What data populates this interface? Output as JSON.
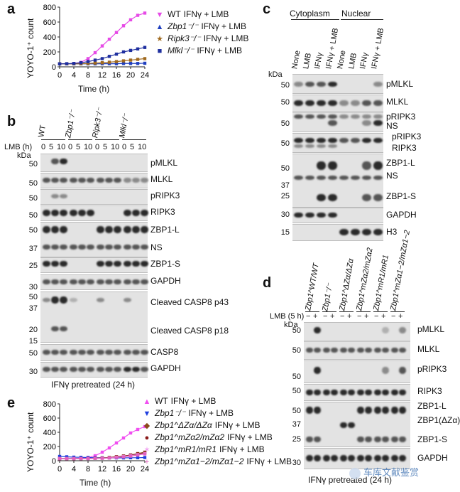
{
  "panels": {
    "a": {
      "label": "a",
      "y_title": "YOYO-1⁺ count",
      "x_title": "Time (h)",
      "legend": [
        {
          "prefix": "WT",
          "suffix": "IFNγ + LMB",
          "color": "#e64ae6",
          "marker": "▼"
        },
        {
          "prefix": "Zbp1⁻/⁻",
          "suffix": "IFNγ + LMB",
          "color": "#1f3fbf",
          "marker": "▲"
        },
        {
          "prefix": "Ripk3⁻/⁻",
          "suffix": "IFNγ + LMB",
          "color": "#a06a1f",
          "marker": "★"
        },
        {
          "prefix": "Mlkl⁻/⁻",
          "suffix": "IFNγ + LMB",
          "color": "#1f2f9f",
          "marker": "■"
        }
      ]
    },
    "b": {
      "label": "b",
      "genotypes": [
        "WT",
        "Zbp1⁻/⁻",
        "Ripk3⁻/⁻",
        "Mlkl⁻/⁻"
      ],
      "lmb_header": "LMB (h)",
      "lmb_times": [
        "0",
        "5",
        "10",
        "0",
        "5",
        "10",
        "0",
        "5",
        "10",
        "0",
        "5",
        "10"
      ],
      "kda": "kDa",
      "rows": [
        {
          "label": "pMLKL",
          "mw": [
            "50"
          ]
        },
        {
          "label": "MLKL",
          "mw": [
            "50"
          ]
        },
        {
          "label": "pRIPK3",
          "mw": [
            "50"
          ]
        },
        {
          "label": "RIPK3",
          "mw": [
            "50"
          ]
        },
        {
          "label": "ZBP1-L",
          "mw": [
            "50"
          ]
        },
        {
          "label": "NS",
          "mw": [
            "37"
          ]
        },
        {
          "label": "ZBP1-S",
          "mw": [
            "25"
          ]
        },
        {
          "label": "GAPDH",
          "mw": [
            "30"
          ]
        },
        {
          "label": "Cleaved CASP8 p43",
          "mw": [
            "50",
            "37"
          ]
        },
        {
          "label": "Cleaved CASP8 p18",
          "mw": [
            "20",
            "15"
          ]
        },
        {
          "label": "CASP8",
          "mw": [
            "50"
          ]
        },
        {
          "label": "GAPDH",
          "mw": [
            "30"
          ]
        }
      ],
      "footer": "IFNγ pretreated (24 h)"
    },
    "c": {
      "label": "c",
      "groups": [
        "Cytoplasm",
        "Nuclear"
      ],
      "lanes": [
        "None",
        "LMB",
        "IFNγ",
        "IFNγ + LMB",
        "None",
        "LMB",
        "IFNγ",
        "IFNγ + LMB"
      ],
      "kda": "kDa",
      "rows": [
        {
          "label": "pMLKL",
          "mw": [
            "50"
          ]
        },
        {
          "label": "MLKL",
          "mw": [
            "50"
          ]
        },
        {
          "label": "pRIPK3",
          "mw": [
            "50"
          ]
        },
        {
          "label": "NS",
          "mw": []
        },
        {
          "label": "pRIPK3",
          "mw": [
            "50"
          ]
        },
        {
          "label": "RIPK3",
          "mw": []
        },
        {
          "label": "ZBP1-L",
          "mw": [
            "50"
          ]
        },
        {
          "label": "NS",
          "mw": [
            "37"
          ]
        },
        {
          "label": "ZBP1-S",
          "mw": [
            "25"
          ]
        },
        {
          "label": "GAPDH",
          "mw": [
            "30"
          ]
        },
        {
          "label": "H3",
          "mw": [
            "15"
          ]
        }
      ]
    },
    "d": {
      "label": "d",
      "genotypes": [
        "Zbp1^WT/WT",
        "Zbp1⁻/⁻",
        "Zbp1^ΔZα/ΔZα",
        "Zbp1^mZα2/mZα2",
        "Zbp1^mR1/mR1",
        "Zbp1^mZα1−2/mZα1−2"
      ],
      "lmb_header": "LMB (5 h)",
      "lmb_signs": [
        "−",
        "+",
        "−",
        "+",
        "−",
        "+",
        "−",
        "+",
        "−",
        "+",
        "−",
        "+"
      ],
      "kda": "kDa",
      "rows": [
        {
          "label": "pMLKL",
          "mw": [
            "50"
          ]
        },
        {
          "label": "MLKL",
          "mw": [
            "50"
          ]
        },
        {
          "label": "pRIPK3",
          "mw": [
            "50"
          ]
        },
        {
          "label": "RIPK3",
          "mw": [
            "50"
          ]
        },
        {
          "label": "ZBP1-L",
          "mw": [
            "50"
          ]
        },
        {
          "label": "ZBP1(ΔZα)",
          "mw": [
            "37"
          ]
        },
        {
          "label": "ZBP1-S",
          "mw": [
            "25"
          ]
        },
        {
          "label": "GAPDH",
          "mw": [
            "30"
          ]
        }
      ],
      "footer": "IFNγ pretreated (24 h)"
    },
    "e": {
      "label": "e",
      "y_title": "YOYO-1⁺ count",
      "x_title": "Time (h)",
      "legend": [
        {
          "prefix": "WT",
          "suffix": "IFNγ + LMB",
          "color": "#f04ef0",
          "marker": "▲"
        },
        {
          "prefix": "Zbp1⁻/⁻",
          "suffix": "IFNγ + LMB",
          "color": "#1f3fdf",
          "marker": "▼"
        },
        {
          "prefix": "Zbp1^ΔZα/ΔZα",
          "suffix": "IFNγ + LMB",
          "color": "#8a4a1a",
          "marker": "◆"
        },
        {
          "prefix": "Zbp1^mZα2/mZα2",
          "suffix": "IFNγ + LMB",
          "color": "#8a1a1a",
          "marker": "●"
        },
        {
          "prefix": "Zbp1^mR1/mR1",
          "suffix": "IFNγ + LMB",
          "color": "#f0a0f0",
          "marker": "✶"
        },
        {
          "prefix": "Zbp1^mZα1−2/mZα1−2",
          "suffix": "IFNγ + LMB",
          "color": "#e060c0",
          "marker": "+"
        }
      ]
    }
  },
  "watermark": "车库文献鉴赏",
  "chart_data": [
    {
      "type": "line",
      "title": "a",
      "xlabel": "Time (h)",
      "ylabel": "YOYO-1⁺ count",
      "x": [
        0,
        2,
        4,
        6,
        8,
        10,
        12,
        14,
        16,
        18,
        20,
        22,
        24
      ],
      "xticks": [
        "0",
        "4",
        "8",
        "12",
        "16",
        "20",
        "24"
      ],
      "yticks": [
        "0",
        "200",
        "400",
        "600",
        "800"
      ],
      "ylim": [
        0,
        800
      ],
      "series": [
        {
          "name": "WT IFNγ + LMB",
          "color": "#e64ae6",
          "values": [
            40,
            40,
            45,
            60,
            110,
            190,
            280,
            370,
            460,
            550,
            630,
            690,
            720
          ]
        },
        {
          "name": "Zbp1⁻/⁻ IFNγ + LMB",
          "color": "#1f3fbf",
          "values": [
            40,
            40,
            40,
            40,
            40,
            40,
            42,
            42,
            42,
            45,
            45,
            45,
            48
          ]
        },
        {
          "name": "Ripk3⁻/⁻ IFNγ + LMB",
          "color": "#a06a1f",
          "values": [
            40,
            40,
            40,
            42,
            45,
            50,
            55,
            62,
            70,
            80,
            90,
            100,
            110
          ]
        },
        {
          "name": "Mlkl⁻/⁻ IFNγ + LMB",
          "color": "#1f2f9f",
          "values": [
            40,
            42,
            45,
            55,
            70,
            90,
            110,
            140,
            170,
            200,
            220,
            240,
            260
          ]
        }
      ]
    },
    {
      "type": "line",
      "title": "e",
      "xlabel": "Time (h)",
      "ylabel": "YOYO-1⁺ count",
      "x": [
        0,
        2,
        4,
        6,
        8,
        10,
        12,
        14,
        16,
        18,
        20,
        22,
        24
      ],
      "xticks": [
        "0",
        "4",
        "8",
        "12",
        "16",
        "20",
        "24"
      ],
      "yticks": [
        "0",
        "200",
        "400",
        "600",
        "800"
      ],
      "ylim": [
        0,
        800
      ],
      "series": [
        {
          "name": "WT IFNγ + LMB",
          "color": "#f04ef0",
          "values": [
            30,
            30,
            30,
            35,
            45,
            70,
            120,
            180,
            250,
            320,
            390,
            440,
            480
          ]
        },
        {
          "name": "Zbp1⁻/⁻ IFNγ + LMB",
          "color": "#1f3fdf",
          "values": [
            60,
            55,
            50,
            48,
            45,
            42,
            42,
            40,
            40,
            40,
            42,
            42,
            45
          ]
        },
        {
          "name": "Zbp1^ΔZα/ΔZα IFNγ + LMB",
          "color": "#8a4a1a",
          "values": [
            30,
            30,
            30,
            30,
            32,
            35,
            40,
            45,
            55,
            65,
            80,
            100,
            120
          ]
        },
        {
          "name": "Zbp1^mZα2/mZα2 IFNγ + LMB",
          "color": "#8a1a1a",
          "values": [
            30,
            30,
            30,
            30,
            32,
            34,
            38,
            45,
            55,
            65,
            80,
            95,
            110
          ]
        },
        {
          "name": "Zbp1^mR1/mR1 IFNγ + LMB",
          "color": "#f0a0f0",
          "values": [
            30,
            30,
            30,
            30,
            30,
            32,
            35,
            40,
            48,
            58,
            70,
            85,
            100
          ]
        },
        {
          "name": "Zbp1^mZα1−2/mZα1−2 IFNγ + LMB",
          "color": "#e060c0",
          "values": [
            30,
            30,
            30,
            30,
            30,
            32,
            34,
            38,
            45,
            55,
            65,
            80,
            95
          ]
        }
      ]
    }
  ]
}
